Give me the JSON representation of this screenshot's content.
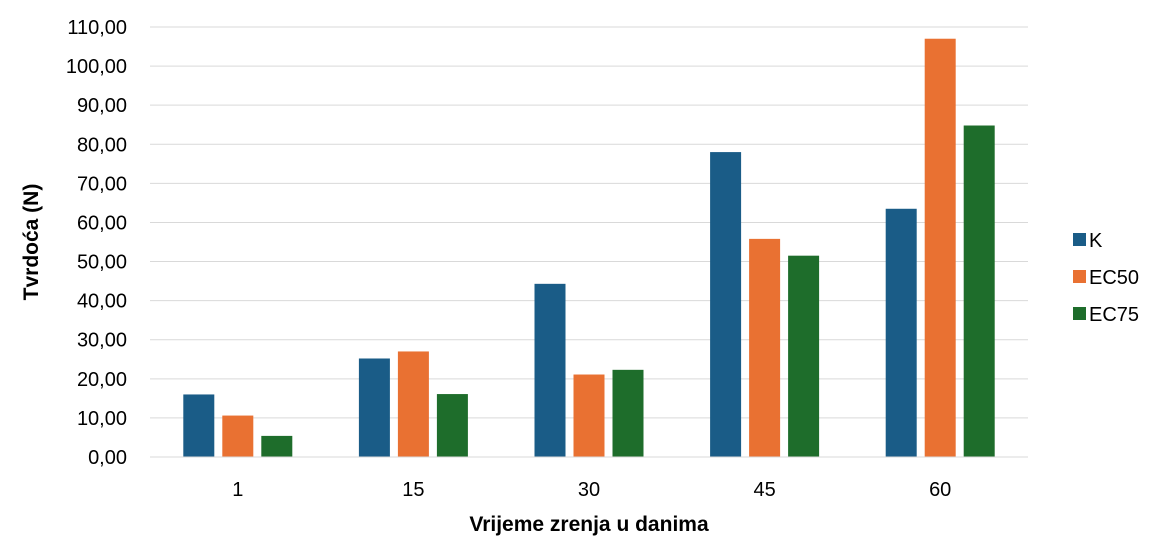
{
  "chart_data": {
    "type": "bar",
    "title": "",
    "xlabel": "Vrijeme zrenja u danima",
    "ylabel": "Tvrdoća (N)",
    "categories": [
      "1",
      "15",
      "30",
      "45",
      "60"
    ],
    "series": [
      {
        "name": "K",
        "color": "#1a5c87",
        "values": [
          16.0,
          25.2,
          44.3,
          78.0,
          63.5
        ]
      },
      {
        "name": "EC50",
        "color": "#e97132",
        "values": [
          10.6,
          27.0,
          21.1,
          55.8,
          107.0
        ]
      },
      {
        "name": "EC75",
        "color": "#1e6d2b",
        "values": [
          5.4,
          16.1,
          22.3,
          51.5,
          84.8
        ]
      }
    ],
    "ylim": [
      0,
      110
    ],
    "yticks": [
      "0,00",
      "10,00",
      "20,00",
      "30,00",
      "40,00",
      "50,00",
      "60,00",
      "70,00",
      "80,00",
      "90,00",
      "100,00",
      "110,00"
    ],
    "grid": true,
    "legend_position": "right"
  }
}
